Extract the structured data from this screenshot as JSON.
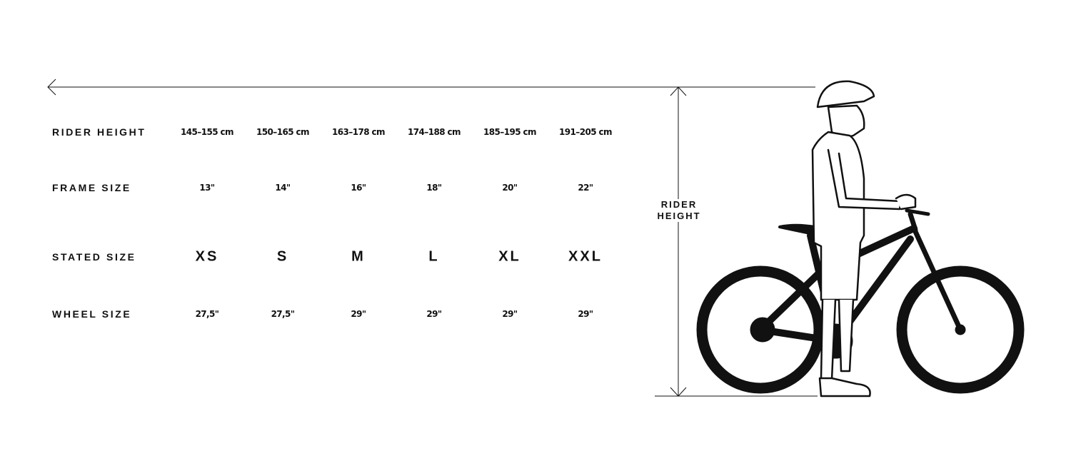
{
  "rows": [
    {
      "label": "RIDER HEIGHT",
      "values": [
        "145–155 cm",
        "150–165 cm",
        "163–178 cm",
        "174–188 cm",
        "185–195 cm",
        "191–205 cm"
      ]
    },
    {
      "label": "FRAME SIZE",
      "values": [
        "13\"",
        "14\"",
        "16\"",
        "18\"",
        "20\"",
        "22\""
      ]
    },
    {
      "label": "STATED SIZE",
      "values": [
        "XS",
        "S",
        "M",
        "L",
        "XL",
        "XXL"
      ]
    },
    {
      "label": "WHEEL SIZE",
      "values": [
        "27,5\"",
        "27,5\"",
        "29\"",
        "29\"",
        "29\"",
        "29\""
      ]
    }
  ],
  "illustration": {
    "label_line1": "RIDER",
    "label_line2": "HEIGHT",
    "icon": "rider-with-bicycle"
  },
  "colors": {
    "ink": "#111111",
    "background": "#ffffff"
  }
}
